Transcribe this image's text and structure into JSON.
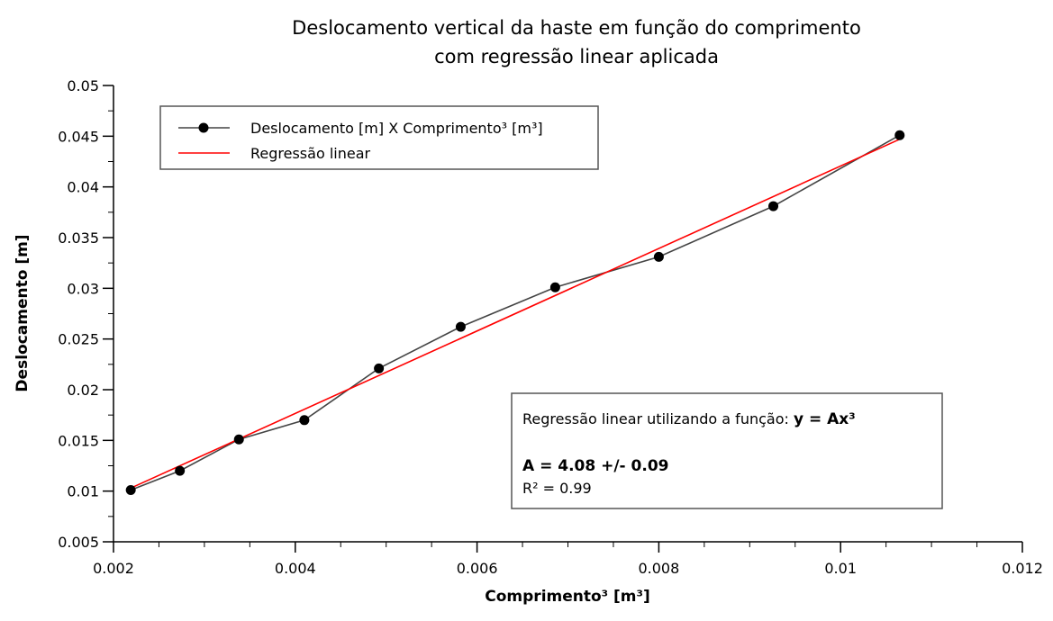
{
  "chart_data": {
    "type": "line",
    "title_lines": [
      "Deslocamento vertical da haste em função do comprimento",
      "com regressão linear aplicada"
    ],
    "xlabel": "Comprimento³ [m³]",
    "ylabel": "Deslocamento [m]",
    "xlim": [
      0.002,
      0.012
    ],
    "ylim": [
      0.005,
      0.05
    ],
    "xticks": [
      0.002,
      0.004,
      0.006,
      0.008,
      0.01,
      0.012
    ],
    "xtick_labels": [
      "0.002",
      "0.004",
      "0.006",
      "0.008",
      "0.01",
      "0.012"
    ],
    "yticks": [
      0.005,
      0.01,
      0.015,
      0.02,
      0.025,
      0.03,
      0.035,
      0.04,
      0.045,
      0.05
    ],
    "ytick_labels": [
      "0.005",
      "0.01",
      "0.015",
      "0.02",
      "0.025",
      "0.03",
      "0.035",
      "0.04",
      "0.045",
      "0.05"
    ],
    "grid": false,
    "legend_position": "top-left",
    "series": [
      {
        "name": "Deslocamento [m] X Comprimento³ [m³]",
        "color": "#000000",
        "line_color": "#444444",
        "marker": "circle",
        "x": [
          0.00219,
          0.00273,
          0.00338,
          0.0041,
          0.00492,
          0.00582,
          0.00686,
          0.008,
          0.00926,
          0.01065
        ],
        "y": [
          0.0101,
          0.012,
          0.0151,
          0.017,
          0.0221,
          0.0262,
          0.0301,
          0.0331,
          0.0381,
          0.0451
        ]
      },
      {
        "name": "Regressão linear",
        "color": "#ff0000",
        "marker": "none",
        "x": [
          0.00219,
          0.01065
        ],
        "y": [
          0.0103,
          0.0447
        ]
      }
    ],
    "annotation": {
      "line1_prefix": "Regressão linear utilizando a função: ",
      "line1_bold": "y = Ax³",
      "line2": "A = 4.08 +/- 0.09",
      "line3": "R² = 0.99"
    }
  }
}
